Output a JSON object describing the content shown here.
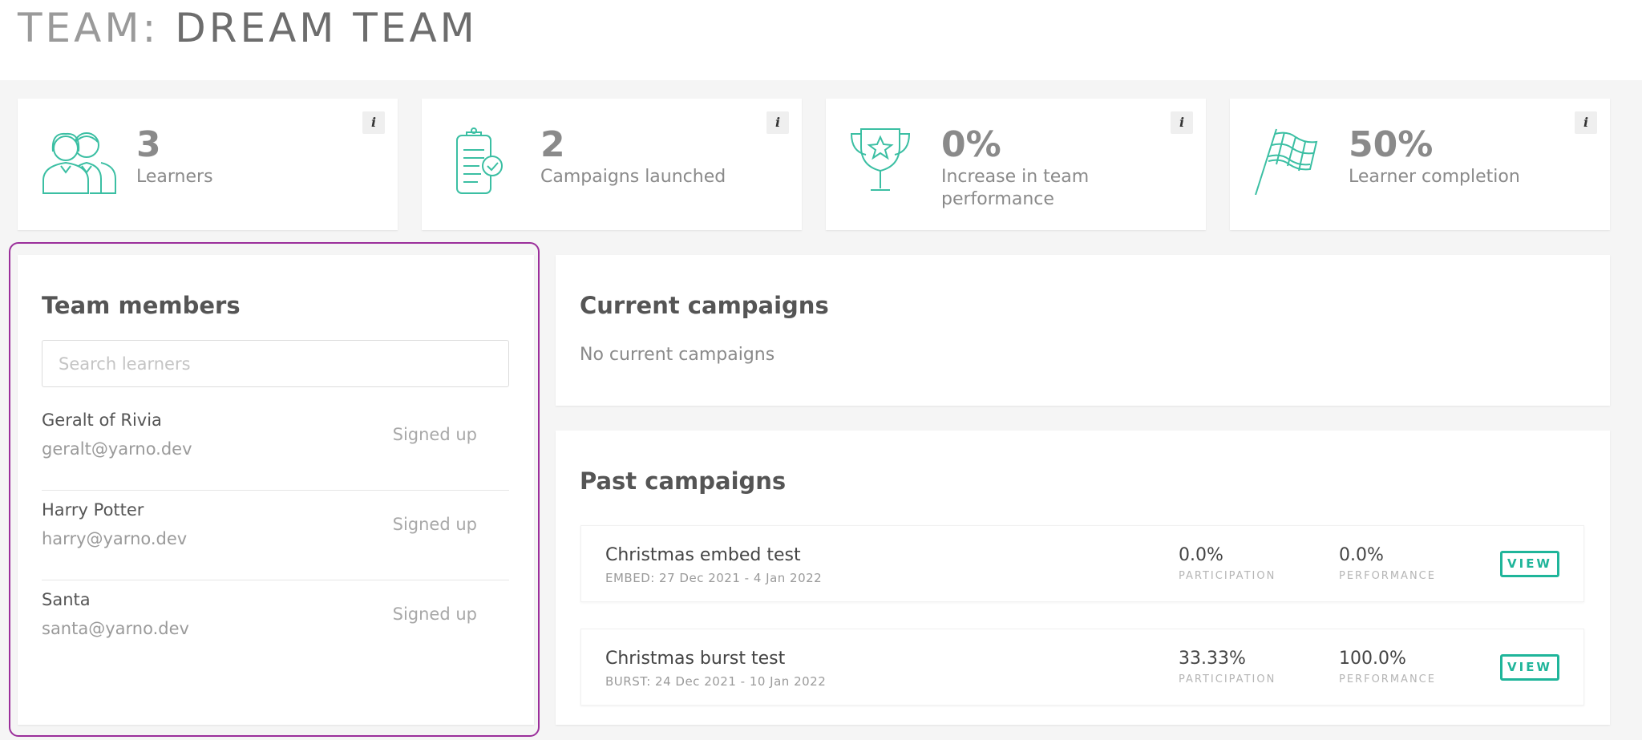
{
  "header": {
    "title_prefix": "TEAM:",
    "title_name": "DREAM TEAM"
  },
  "stats": [
    {
      "value": "3",
      "label": "Learners",
      "icon": "learners-icon"
    },
    {
      "value": "2",
      "label": "Campaigns launched",
      "icon": "clipboard-check-icon"
    },
    {
      "value": "0%",
      "label": "Increase in team performance",
      "icon": "trophy-icon"
    },
    {
      "value": "50%",
      "label": "Learner completion",
      "icon": "checkered-flag-icon"
    }
  ],
  "info_label": "i",
  "team": {
    "title": "Team members",
    "search_placeholder": "Search learners",
    "members": [
      {
        "name": "Geralt of Rivia",
        "email": "geralt@yarno.dev",
        "status": "Signed up"
      },
      {
        "name": "Harry Potter",
        "email": "harry@yarno.dev",
        "status": "Signed up"
      },
      {
        "name": "Santa",
        "email": "santa@yarno.dev",
        "status": "Signed up"
      }
    ]
  },
  "current": {
    "title": "Current campaigns",
    "empty_text": "No current campaigns"
  },
  "past": {
    "title": "Past campaigns",
    "participation_label": "PARTICIPATION",
    "performance_label": "PERFORMANCE",
    "view_label": "VIEW",
    "campaigns": [
      {
        "name": "Christmas embed test",
        "meta": "EMBED: 27 Dec 2021 - 4 Jan 2022",
        "participation": "0.0%",
        "performance": "0.0%"
      },
      {
        "name": "Christmas burst test",
        "meta": "BURST: 24 Dec 2021 - 10 Jan 2022",
        "participation": "33.33%",
        "performance": "100.0%"
      }
    ]
  },
  "colors": {
    "accent": "#1fb59a",
    "highlight_outline": "#9b2f9b",
    "background": "#f5f5f5"
  }
}
